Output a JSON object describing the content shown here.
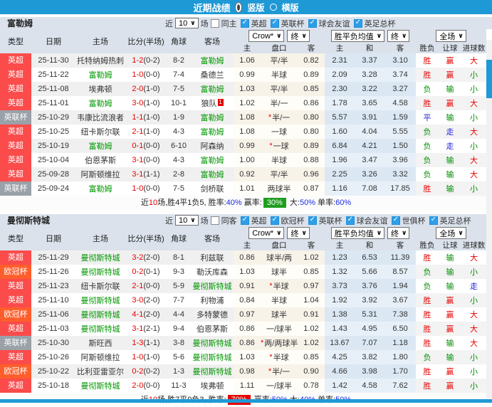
{
  "titlebar": {
    "title": "近期战绩",
    "vertical_label": "竖版",
    "horizontal_label": "横版"
  },
  "labels": {
    "near": "近",
    "games": "场"
  },
  "columns": {
    "type": "类型",
    "date": "日期",
    "home": "主场",
    "score": "比分(半场)",
    "corner": "角球",
    "away": "客场",
    "odds_home": "主",
    "handicap": "盘口",
    "odds_away": "客",
    "avg_home": "主",
    "avg_draw": "和",
    "avg_away": "客",
    "wdl": "胜负",
    "handicap_result": "让球",
    "goals": "进球数"
  },
  "dropdowns": {
    "company": "Crow*",
    "stage1": "终",
    "avg": "胜平负均值",
    "stage2": "终",
    "scope": "全场"
  },
  "colors": {
    "accent_blue": "#1f99d5",
    "leagues": {
      "英超": "#fb4b4b",
      "英联杯": "#9aa1a8",
      "欧冠杯": "#ff5e2b"
    },
    "result_map": {
      "胜": "red",
      "平": "blue",
      "负": "green",
      "赢": "red",
      "输": "green",
      "走": "blue",
      "大": "red",
      "小": "green"
    },
    "result_hex": {
      "red": "#e60000",
      "green": "#008f00",
      "blue": "#2222dd"
    }
  },
  "sections": [
    {
      "team": "富勒姆",
      "games": "10",
      "same_label": "同主",
      "leagues": [
        "英超",
        "英联杯",
        "球会友谊",
        "英足总杯"
      ],
      "rows": [
        {
          "lg": "英超",
          "date": "25-11-30",
          "home": "托特纳姆热刺",
          "hf": false,
          "score": "1-2",
          "half": "(0-2)",
          "corner": "8-2",
          "away": "富勒姆",
          "af": true,
          "rc": "",
          "o1": "1.06",
          "star": false,
          "hc": "平/半",
          "o2": "0.82",
          "w": "2.31",
          "d": "3.37",
          "l": "3.10",
          "r1": "胜",
          "r2": "赢",
          "r3": "大"
        },
        {
          "lg": "英超",
          "date": "25-11-22",
          "home": "富勒姆",
          "hf": true,
          "score": "1-0",
          "half": "(0-0)",
          "corner": "7-4",
          "away": "桑德兰",
          "af": false,
          "rc": "",
          "o1": "0.99",
          "star": false,
          "hc": "半球",
          "o2": "0.89",
          "w": "2.09",
          "d": "3.28",
          "l": "3.74",
          "r1": "胜",
          "r2": "赢",
          "r3": "小"
        },
        {
          "lg": "英超",
          "date": "25-11-08",
          "home": "埃弗顿",
          "hf": false,
          "score": "2-0",
          "half": "(1-0)",
          "corner": "7-5",
          "away": "富勒姆",
          "af": true,
          "rc": "",
          "o1": "1.03",
          "star": false,
          "hc": "平/半",
          "o2": "0.85",
          "w": "2.30",
          "d": "3.22",
          "l": "3.27",
          "r1": "负",
          "r2": "输",
          "r3": "小"
        },
        {
          "lg": "英超",
          "date": "25-11-01",
          "home": "富勒姆",
          "hf": true,
          "score": "3-0",
          "half": "(1-0)",
          "corner": "10-1",
          "away": "狼队",
          "af": false,
          "rc": "1",
          "o1": "1.02",
          "star": false,
          "hc": "半/一",
          "o2": "0.86",
          "w": "1.78",
          "d": "3.65",
          "l": "4.58",
          "r1": "胜",
          "r2": "赢",
          "r3": "大"
        },
        {
          "lg": "英联杯",
          "date": "25-10-29",
          "home": "韦康比流浪者",
          "hf": false,
          "score": "1-1",
          "half": "(1-0)",
          "corner": "1-9",
          "away": "富勒姆",
          "af": true,
          "rc": "",
          "o1": "1.08",
          "star": true,
          "hc": "半/一",
          "o2": "0.80",
          "w": "5.57",
          "d": "3.91",
          "l": "1.59",
          "r1": "平",
          "r2": "输",
          "r3": "小"
        },
        {
          "lg": "英超",
          "date": "25-10-25",
          "home": "纽卡斯尔联",
          "hf": false,
          "score": "2-1",
          "half": "(1-0)",
          "corner": "4-3",
          "away": "富勒姆",
          "af": true,
          "rc": "",
          "o1": "1.08",
          "star": false,
          "hc": "一球",
          "o2": "0.80",
          "w": "1.60",
          "d": "4.04",
          "l": "5.55",
          "r1": "负",
          "r2": "走",
          "r3": "大"
        },
        {
          "lg": "英超",
          "date": "25-10-19",
          "home": "富勒姆",
          "hf": true,
          "score": "0-1",
          "half": "(0-0)",
          "corner": "6-10",
          "away": "阿森纳",
          "af": false,
          "rc": "",
          "o1": "0.99",
          "star": true,
          "hc": "一球",
          "o2": "0.89",
          "w": "6.84",
          "d": "4.21",
          "l": "1.50",
          "r1": "负",
          "r2": "走",
          "r3": "小"
        },
        {
          "lg": "英超",
          "date": "25-10-04",
          "home": "伯恩茅斯",
          "hf": false,
          "score": "3-1",
          "half": "(0-0)",
          "corner": "4-3",
          "away": "富勒姆",
          "af": true,
          "rc": "",
          "o1": "1.00",
          "star": false,
          "hc": "半球",
          "o2": "0.88",
          "w": "1.96",
          "d": "3.47",
          "l": "3.96",
          "r1": "负",
          "r2": "输",
          "r3": "大"
        },
        {
          "lg": "英超",
          "date": "25-09-28",
          "home": "阿斯顿维拉",
          "hf": false,
          "score": "3-1",
          "half": "(1-1)",
          "corner": "2-8",
          "away": "富勒姆",
          "af": true,
          "rc": "",
          "o1": "0.92",
          "star": false,
          "hc": "平/半",
          "o2": "0.96",
          "w": "2.25",
          "d": "3.26",
          "l": "3.32",
          "r1": "负",
          "r2": "输",
          "r3": "大"
        },
        {
          "lg": "英联杯",
          "date": "25-09-24",
          "home": "富勒姆",
          "hf": true,
          "score": "1-0",
          "half": "(0-0)",
          "corner": "7-5",
          "away": "剑桥联",
          "af": false,
          "rc": "",
          "o1": "1.01",
          "star": false,
          "hc": "两球半",
          "o2": "0.87",
          "w": "1.16",
          "d": "7.08",
          "l": "17.85",
          "r1": "胜",
          "r2": "输",
          "r3": "小"
        }
      ],
      "summary": [
        {
          "text": "近",
          "style": "plain"
        },
        {
          "text": "10",
          "style": "red"
        },
        {
          "text": "场,胜4平1负5, 胜率:",
          "style": "plain"
        },
        {
          "text": "40%",
          "style": "blue"
        },
        {
          "text": " 赢率:",
          "style": "plain"
        },
        {
          "text": "30%",
          "style": "badge-green"
        },
        {
          "text": " 大:",
          "style": "plain"
        },
        {
          "text": "50%",
          "style": "blue"
        },
        {
          "text": " 单率:",
          "style": "plain"
        },
        {
          "text": "60%",
          "style": "blue"
        }
      ]
    },
    {
      "team": "曼彻斯特城",
      "games": "10",
      "same_label": "同客",
      "leagues": [
        "英超",
        "欧冠杯",
        "英联杯",
        "球会友谊",
        "世俱杯",
        "英足总杯"
      ],
      "rows": [
        {
          "lg": "英超",
          "date": "25-11-29",
          "home": "曼彻斯特城",
          "hf": true,
          "score": "3-2",
          "half": "(2-0)",
          "corner": "8-1",
          "away": "利兹联",
          "af": false,
          "rc": "",
          "o1": "0.86",
          "star": false,
          "hc": "球半/两",
          "o2": "1.02",
          "w": "1.23",
          "d": "6.53",
          "l": "11.39",
          "r1": "胜",
          "r2": "输",
          "r3": "大"
        },
        {
          "lg": "欧冠杯",
          "date": "25-11-26",
          "home": "曼彻斯特城",
          "hf": true,
          "score": "0-2",
          "half": "(0-1)",
          "corner": "9-3",
          "away": "勒沃库森",
          "af": false,
          "rc": "",
          "o1": "1.03",
          "star": false,
          "hc": "球半",
          "o2": "0.85",
          "w": "1.32",
          "d": "5.66",
          "l": "8.57",
          "r1": "负",
          "r2": "输",
          "r3": "小"
        },
        {
          "lg": "英超",
          "date": "25-11-23",
          "home": "纽卡斯尔联",
          "hf": false,
          "score": "2-1",
          "half": "(0-0)",
          "corner": "5-9",
          "away": "曼彻斯特城",
          "af": true,
          "rc": "",
          "o1": "0.91",
          "star": true,
          "hc": "半球",
          "o2": "0.97",
          "w": "3.73",
          "d": "3.76",
          "l": "1.94",
          "r1": "负",
          "r2": "输",
          "r3": "走"
        },
        {
          "lg": "英超",
          "date": "25-11-10",
          "home": "曼彻斯特城",
          "hf": true,
          "score": "3-0",
          "half": "(2-0)",
          "corner": "7-7",
          "away": "利物浦",
          "af": false,
          "rc": "",
          "o1": "0.84",
          "star": false,
          "hc": "半球",
          "o2": "1.04",
          "w": "1.92",
          "d": "3.92",
          "l": "3.67",
          "r1": "胜",
          "r2": "赢",
          "r3": "小"
        },
        {
          "lg": "欧冠杯",
          "date": "25-11-06",
          "home": "曼彻斯特城",
          "hf": true,
          "score": "4-1",
          "half": "(2-0)",
          "corner": "4-4",
          "away": "多特蒙德",
          "af": false,
          "rc": "",
          "o1": "0.97",
          "star": false,
          "hc": "球半",
          "o2": "0.91",
          "w": "1.38",
          "d": "5.31",
          "l": "7.38",
          "r1": "胜",
          "r2": "赢",
          "r3": "大"
        },
        {
          "lg": "英超",
          "date": "25-11-03",
          "home": "曼彻斯特城",
          "hf": true,
          "score": "3-1",
          "half": "(2-1)",
          "corner": "9-4",
          "away": "伯恩茅斯",
          "af": false,
          "rc": "",
          "o1": "0.86",
          "star": false,
          "hc": "一/球半",
          "o2": "1.02",
          "w": "1.43",
          "d": "4.95",
          "l": "6.50",
          "r1": "胜",
          "r2": "赢",
          "r3": "大"
        },
        {
          "lg": "英联杯",
          "date": "25-10-30",
          "home": "斯旺西",
          "hf": false,
          "score": "1-3",
          "half": "(1-1)",
          "corner": "3-8",
          "away": "曼彻斯特城",
          "af": true,
          "rc": "",
          "o1": "0.86",
          "star": true,
          "hc": "两/两球半",
          "o2": "1.02",
          "w": "13.67",
          "d": "7.07",
          "l": "1.18",
          "r1": "胜",
          "r2": "输",
          "r3": "大"
        },
        {
          "lg": "英超",
          "date": "25-10-26",
          "home": "阿斯顿维拉",
          "hf": false,
          "score": "1-0",
          "half": "(1-0)",
          "corner": "5-6",
          "away": "曼彻斯特城",
          "af": true,
          "rc": "",
          "o1": "1.03",
          "star": true,
          "hc": "半球",
          "o2": "0.85",
          "w": "4.25",
          "d": "3.82",
          "l": "1.80",
          "r1": "负",
          "r2": "输",
          "r3": "小"
        },
        {
          "lg": "欧冠杯",
          "date": "25-10-22",
          "home": "比利亚雷亚尔",
          "hf": false,
          "score": "0-2",
          "half": "(0-2)",
          "corner": "1-3",
          "away": "曼彻斯特城",
          "af": true,
          "rc": "",
          "o1": "0.98",
          "star": true,
          "hc": "半/一",
          "o2": "0.90",
          "w": "4.66",
          "d": "3.98",
          "l": "1.70",
          "r1": "胜",
          "r2": "赢",
          "r3": "小"
        },
        {
          "lg": "英超",
          "date": "25-10-18",
          "home": "曼彻斯特城",
          "hf": true,
          "score": "2-0",
          "half": "(0-0)",
          "corner": "11-3",
          "away": "埃弗顿",
          "af": false,
          "rc": "",
          "o1": "1.11",
          "star": false,
          "hc": "一/球半",
          "o2": "0.78",
          "w": "1.42",
          "d": "4.58",
          "l": "7.62",
          "r1": "胜",
          "r2": "赢",
          "r3": "小"
        }
      ],
      "summary": [
        {
          "text": "近",
          "style": "plain"
        },
        {
          "text": "10",
          "style": "red"
        },
        {
          "text": "场,胜7平0负3, 胜率:",
          "style": "plain"
        },
        {
          "text": "70%",
          "style": "badge-red"
        },
        {
          "text": " 赢率:",
          "style": "plain"
        },
        {
          "text": "50%",
          "style": "blue"
        },
        {
          "text": " 大:",
          "style": "plain"
        },
        {
          "text": "40%",
          "style": "blue"
        },
        {
          "text": " 单率:",
          "style": "plain"
        },
        {
          "text": "50%",
          "style": "blue"
        }
      ]
    }
  ]
}
